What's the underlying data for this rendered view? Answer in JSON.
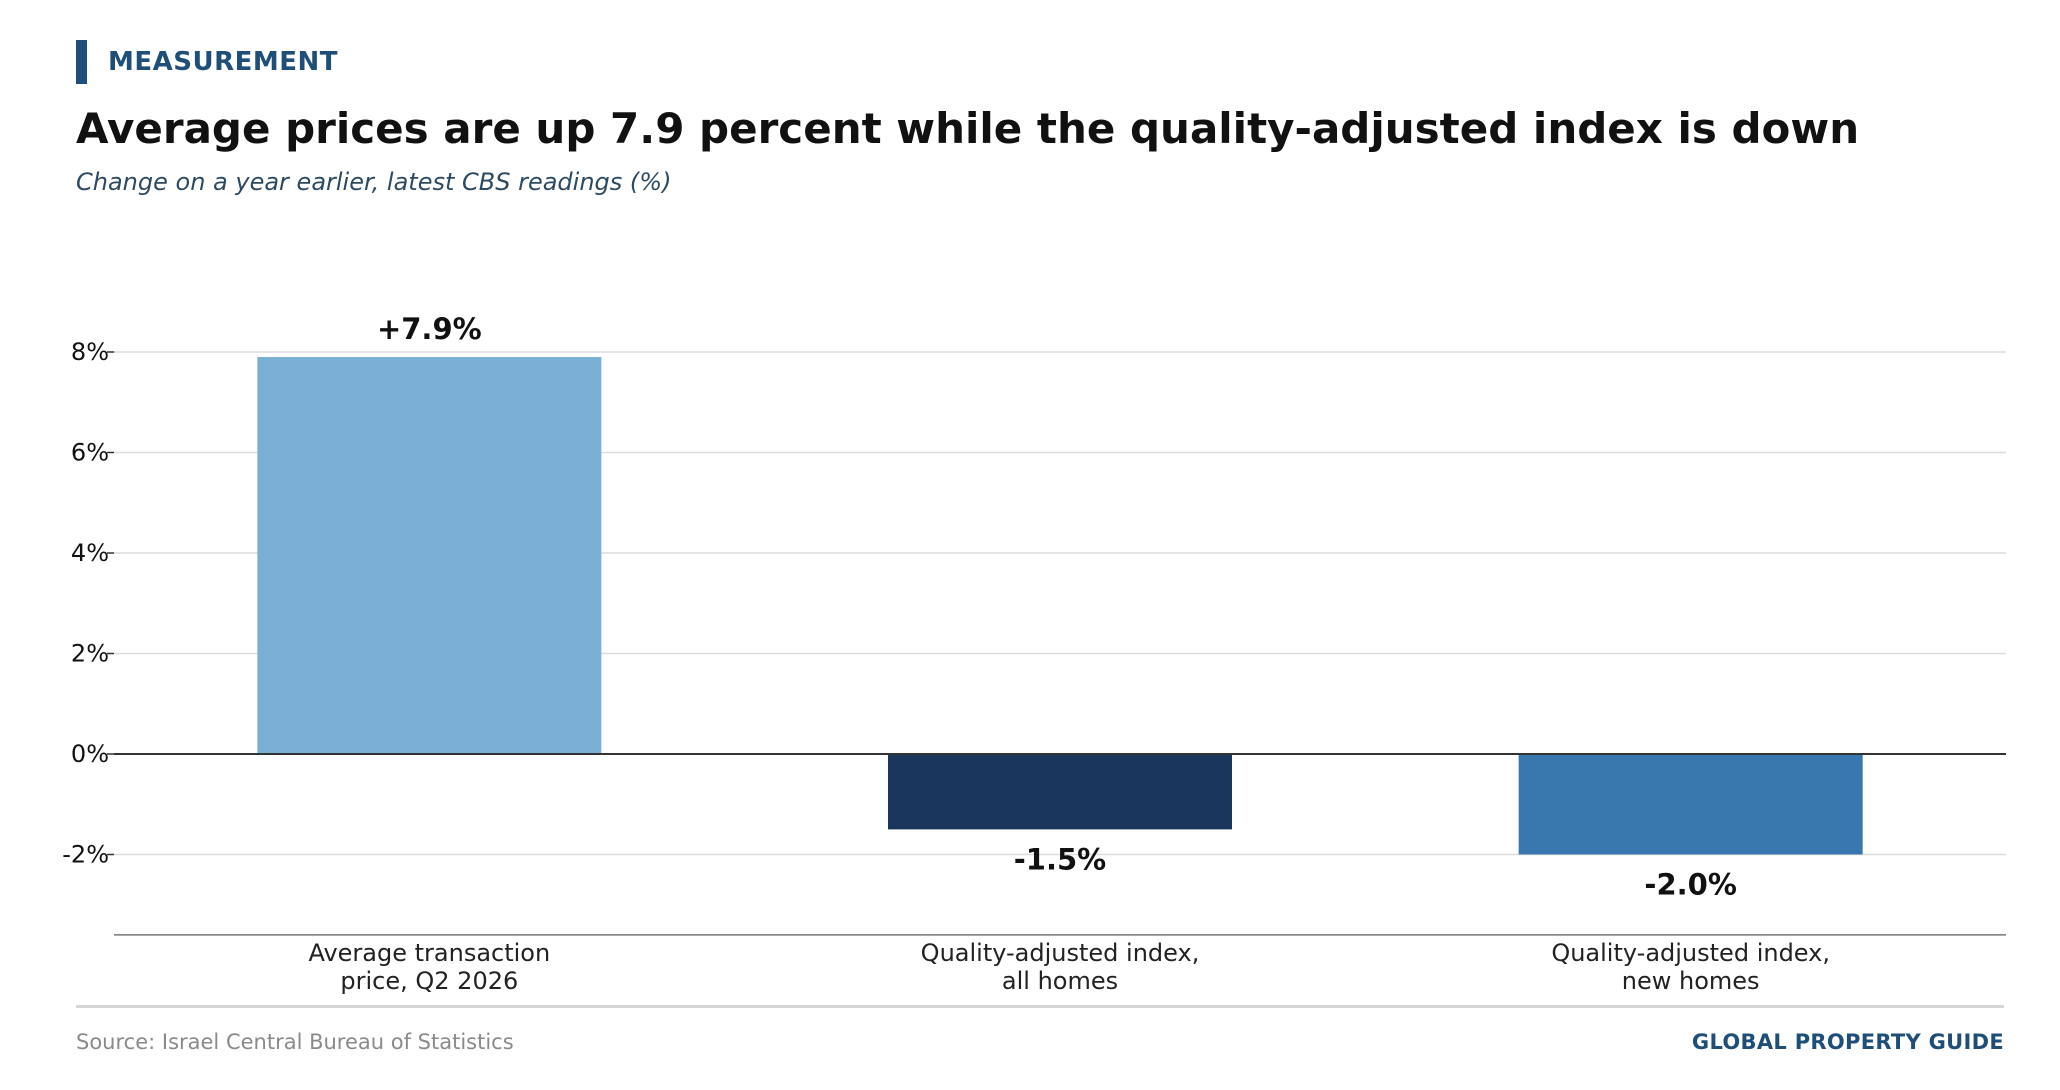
{
  "header": {
    "kicker": "MEASUREMENT",
    "title": "Average prices are up 7.9 percent while the quality-adjusted index is down",
    "subtitle": "Change on a year earlier, latest CBS readings (%)"
  },
  "footer": {
    "source": "Source: Israel Central Bureau of Statistics",
    "brand": "GLOBAL PROPERTY GUIDE"
  },
  "colors": {
    "accent": "#1f4e79",
    "bars": [
      "#7bafd4",
      "#1a365d",
      "#3878ae"
    ]
  },
  "chart_data": {
    "type": "bar",
    "categories": [
      [
        "Average transaction",
        "price, Q2 2026"
      ],
      [
        "Quality-adjusted index,",
        "all homes"
      ],
      [
        "Quality-adjusted index,",
        "new homes"
      ]
    ],
    "values": [
      7.9,
      -1.5,
      -2.0
    ],
    "data_labels": [
      "+7.9%",
      "-1.5%",
      "-2.0%"
    ],
    "yticks": [
      -2,
      0,
      2,
      4,
      6,
      8
    ],
    "ytick_labels": [
      "-2%",
      "0%",
      "2%",
      "4%",
      "6%",
      "8%"
    ],
    "ylim": [
      -3.6,
      8.2
    ],
    "grid": true
  }
}
